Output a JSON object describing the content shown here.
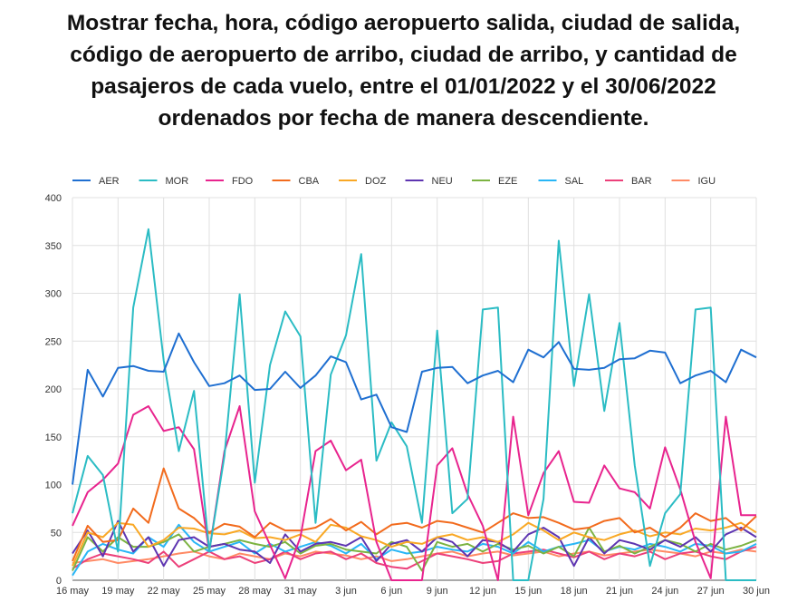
{
  "title_lines": [
    "Mostrar fecha, hora, código aeropuerto salida, ciudad de salida,",
    "código de aeropuerto de arribo, ciudad de arribo, y cantidad de",
    "pasajeros de cada vuelo, entre el 01/01/2022 y el 30/06/2022",
    "ordenados por fecha de manera descendiente."
  ],
  "chart_data": {
    "type": "line",
    "title": "Mostrar fecha, hora, código aeropuerto salida, ciudad de salida, código de aeropuerto de arribo, ciudad de arribo, y cantidad de pasajeros de cada vuelo, entre el 01/01/2022 y el 30/06/2022 ordenados por fecha de manera descendiente.",
    "xlabel": "",
    "ylabel": "",
    "ylim": [
      0,
      400
    ],
    "y_ticks": [
      0,
      50,
      100,
      150,
      200,
      250,
      300,
      350,
      400
    ],
    "x_tick_labels": [
      "16 may",
      "19 may",
      "22 may",
      "25 may",
      "28 may",
      "31 may",
      "3 jun",
      "6 jun",
      "9 jun",
      "12 jun",
      "15 jun",
      "18 jun",
      "21 jun",
      "24 jun",
      "27 jun",
      "30 jun"
    ],
    "x": [
      "16 may",
      "17 may",
      "18 may",
      "19 may",
      "20 may",
      "21 may",
      "22 may",
      "23 may",
      "24 may",
      "25 may",
      "26 may",
      "27 may",
      "28 may",
      "29 may",
      "30 may",
      "31 may",
      "1 jun",
      "2 jun",
      "3 jun",
      "4 jun",
      "5 jun",
      "6 jun",
      "7 jun",
      "8 jun",
      "9 jun",
      "10 jun",
      "11 jun",
      "12 jun",
      "13 jun",
      "14 jun",
      "15 jun",
      "16 jun",
      "17 jun",
      "18 jun",
      "19 jun",
      "20 jun",
      "21 jun",
      "22 jun",
      "23 jun",
      "24 jun",
      "25 jun",
      "26 jun",
      "27 jun",
      "28 jun",
      "29 jun",
      "30 jun"
    ],
    "grid": true,
    "legend_position": "top",
    "series": [
      {
        "name": "AER",
        "color": "#1f6fd1",
        "values": [
          100,
          220,
          192,
          222,
          224,
          219,
          218,
          258,
          228,
          203,
          206,
          214,
          199,
          200,
          218,
          201,
          214,
          234,
          228,
          189,
          194,
          160,
          155,
          218,
          222,
          223,
          206,
          214,
          219,
          207,
          241,
          233,
          249,
          221,
          220,
          222,
          231,
          232,
          240,
          238,
          206,
          214,
          219,
          207,
          241,
          233
        ]
      },
      {
        "name": "MOR",
        "color": "#2bbcc4",
        "values": [
          70,
          130,
          110,
          30,
          285,
          367,
          230,
          135,
          198,
          30,
          130,
          299,
          102,
          225,
          281,
          255,
          60,
          215,
          256,
          341,
          125,
          165,
          140,
          60,
          261,
          70,
          85,
          283,
          285,
          0,
          0,
          85,
          355,
          203,
          299,
          177,
          269,
          120,
          15,
          70,
          90,
          283,
          285,
          0,
          0,
          0
        ]
      },
      {
        "name": "FDO",
        "color": "#e8248e",
        "values": [
          57,
          92,
          105,
          122,
          173,
          182,
          156,
          160,
          137,
          30,
          135,
          182,
          72,
          37,
          2,
          45,
          135,
          146,
          115,
          126,
          40,
          0,
          0,
          0,
          120,
          138,
          90,
          57,
          0,
          171,
          68,
          112,
          135,
          82,
          81,
          120,
          96,
          92,
          75,
          139,
          95,
          40,
          2,
          171,
          68,
          68
        ]
      },
      {
        "name": "CBA",
        "color": "#f26b1d",
        "values": [
          20,
          57,
          40,
          42,
          75,
          60,
          117,
          75,
          65,
          50,
          59,
          56,
          45,
          60,
          52,
          52,
          55,
          64,
          52,
          61,
          48,
          58,
          60,
          55,
          62,
          60,
          55,
          50,
          60,
          70,
          65,
          66,
          60,
          53,
          55,
          62,
          65,
          50,
          55,
          45,
          55,
          70,
          62,
          65,
          52,
          67
        ]
      },
      {
        "name": "DOZ",
        "color": "#f9a825",
        "values": [
          15,
          50,
          45,
          60,
          58,
          35,
          42,
          55,
          54,
          49,
          48,
          52,
          44,
          45,
          42,
          48,
          40,
          58,
          55,
          46,
          42,
          35,
          40,
          38,
          45,
          48,
          42,
          45,
          40,
          48,
          60,
          52,
          42,
          50,
          45,
          42,
          48,
          52,
          46,
          50,
          48,
          54,
          52,
          55,
          60,
          50
        ]
      },
      {
        "name": "NEU",
        "color": "#5e35b1",
        "values": [
          28,
          52,
          25,
          62,
          30,
          45,
          15,
          42,
          45,
          35,
          38,
          32,
          30,
          18,
          48,
          30,
          38,
          40,
          36,
          45,
          20,
          38,
          42,
          30,
          45,
          40,
          25,
          42,
          40,
          30,
          48,
          55,
          45,
          15,
          45,
          28,
          42,
          38,
          32,
          42,
          35,
          45,
          30,
          48,
          55,
          45
        ]
      },
      {
        "name": "EZE",
        "color": "#7cb342",
        "values": [
          10,
          45,
          30,
          45,
          35,
          35,
          40,
          48,
          30,
          35,
          38,
          42,
          38,
          35,
          40,
          28,
          36,
          38,
          32,
          30,
          28,
          40,
          35,
          10,
          40,
          35,
          38,
          30,
          38,
          32,
          36,
          28,
          35,
          25,
          55,
          30,
          36,
          28,
          35,
          42,
          38,
          30,
          38,
          32,
          36,
          42
        ]
      },
      {
        "name": "SAL",
        "color": "#29b6f6",
        "values": [
          5,
          30,
          38,
          32,
          28,
          45,
          35,
          58,
          40,
          30,
          35,
          40,
          28,
          38,
          30,
          35,
          40,
          36,
          28,
          38,
          22,
          32,
          28,
          30,
          35,
          32,
          30,
          38,
          35,
          28,
          40,
          30,
          35,
          38,
          42,
          30,
          35,
          32,
          38,
          35,
          30,
          38,
          36,
          28,
          30,
          38
        ]
      },
      {
        "name": "BAR",
        "color": "#ec407a",
        "values": [
          12,
          22,
          28,
          25,
          22,
          18,
          30,
          14,
          22,
          30,
          22,
          25,
          18,
          22,
          30,
          22,
          28,
          30,
          22,
          28,
          18,
          14,
          12,
          20,
          28,
          25,
          22,
          18,
          20,
          28,
          30,
          32,
          28,
          24,
          30,
          22,
          28,
          25,
          30,
          22,
          28,
          30,
          25,
          22,
          30,
          35
        ]
      },
      {
        "name": "IGU",
        "color": "#ff8a65",
        "values": [
          18,
          20,
          22,
          18,
          20,
          22,
          25,
          28,
          30,
          25,
          22,
          28,
          25,
          22,
          28,
          25,
          30,
          28,
          26,
          22,
          25,
          20,
          22,
          25,
          28,
          30,
          25,
          28,
          30,
          26,
          28,
          30,
          25,
          28,
          30,
          26,
          28,
          30,
          32,
          30,
          28,
          25,
          30,
          28,
          32,
          30
        ]
      }
    ]
  }
}
